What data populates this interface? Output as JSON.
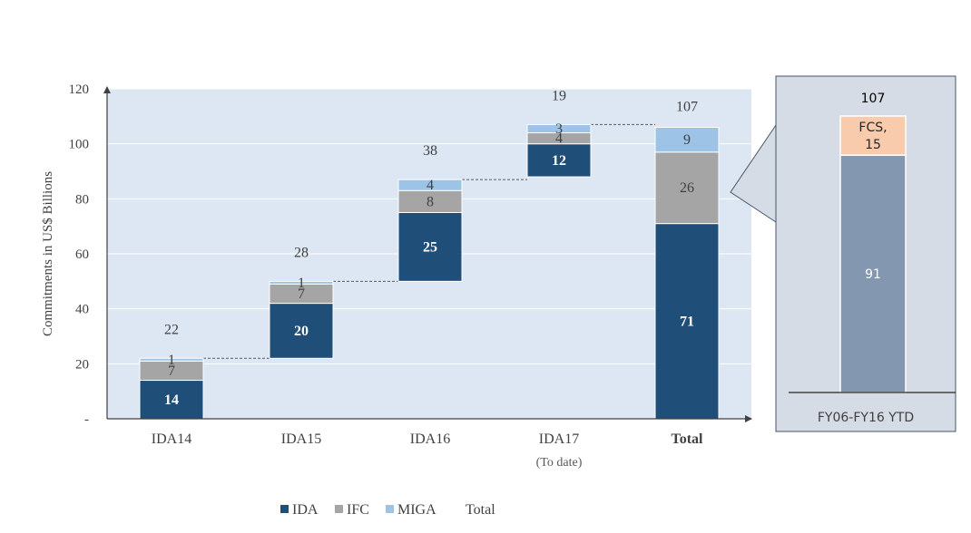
{
  "chart_data": {
    "type": "bar",
    "subtype": "stacked-waterfall",
    "ylabel": "Commitments in US$ Billions",
    "ylim": [
      0,
      120
    ],
    "yticks": [
      "-",
      "20",
      "40",
      "60",
      "80",
      "100",
      "120"
    ],
    "categories": [
      "IDA14",
      "IDA15",
      "IDA16",
      "IDA17",
      "Total"
    ],
    "category_sublabels": [
      "",
      "",
      "",
      "(To date)",
      ""
    ],
    "series": [
      {
        "name": "IDA",
        "color": "#1f4e79",
        "values": [
          14,
          20,
          25,
          12,
          71
        ]
      },
      {
        "name": "IFC",
        "color": "#a5a5a5",
        "values": [
          7,
          7,
          8,
          4,
          26
        ]
      },
      {
        "name": "MIGA",
        "color": "#9dc3e6",
        "values": [
          1,
          1,
          4,
          3,
          9
        ]
      }
    ],
    "totals": [
      22,
      28,
      38,
      19,
      107
    ],
    "bases": [
      0,
      22,
      50,
      88,
      0
    ],
    "legend": [
      "IDA",
      "IFC",
      "MIGA",
      "Total"
    ],
    "legend_position": "bottom",
    "grid": true,
    "plot_background": "#dce7f3"
  },
  "inset": {
    "total_label": "107",
    "category": "FY06-FY16 YTD",
    "segments": [
      {
        "label": "91",
        "value": 91,
        "color": "#8497b0"
      },
      {
        "label": "FCS,\n15",
        "value": 15,
        "color": "#f8cbad"
      }
    ],
    "background": "#d6dce5",
    "border": "#44546a"
  }
}
